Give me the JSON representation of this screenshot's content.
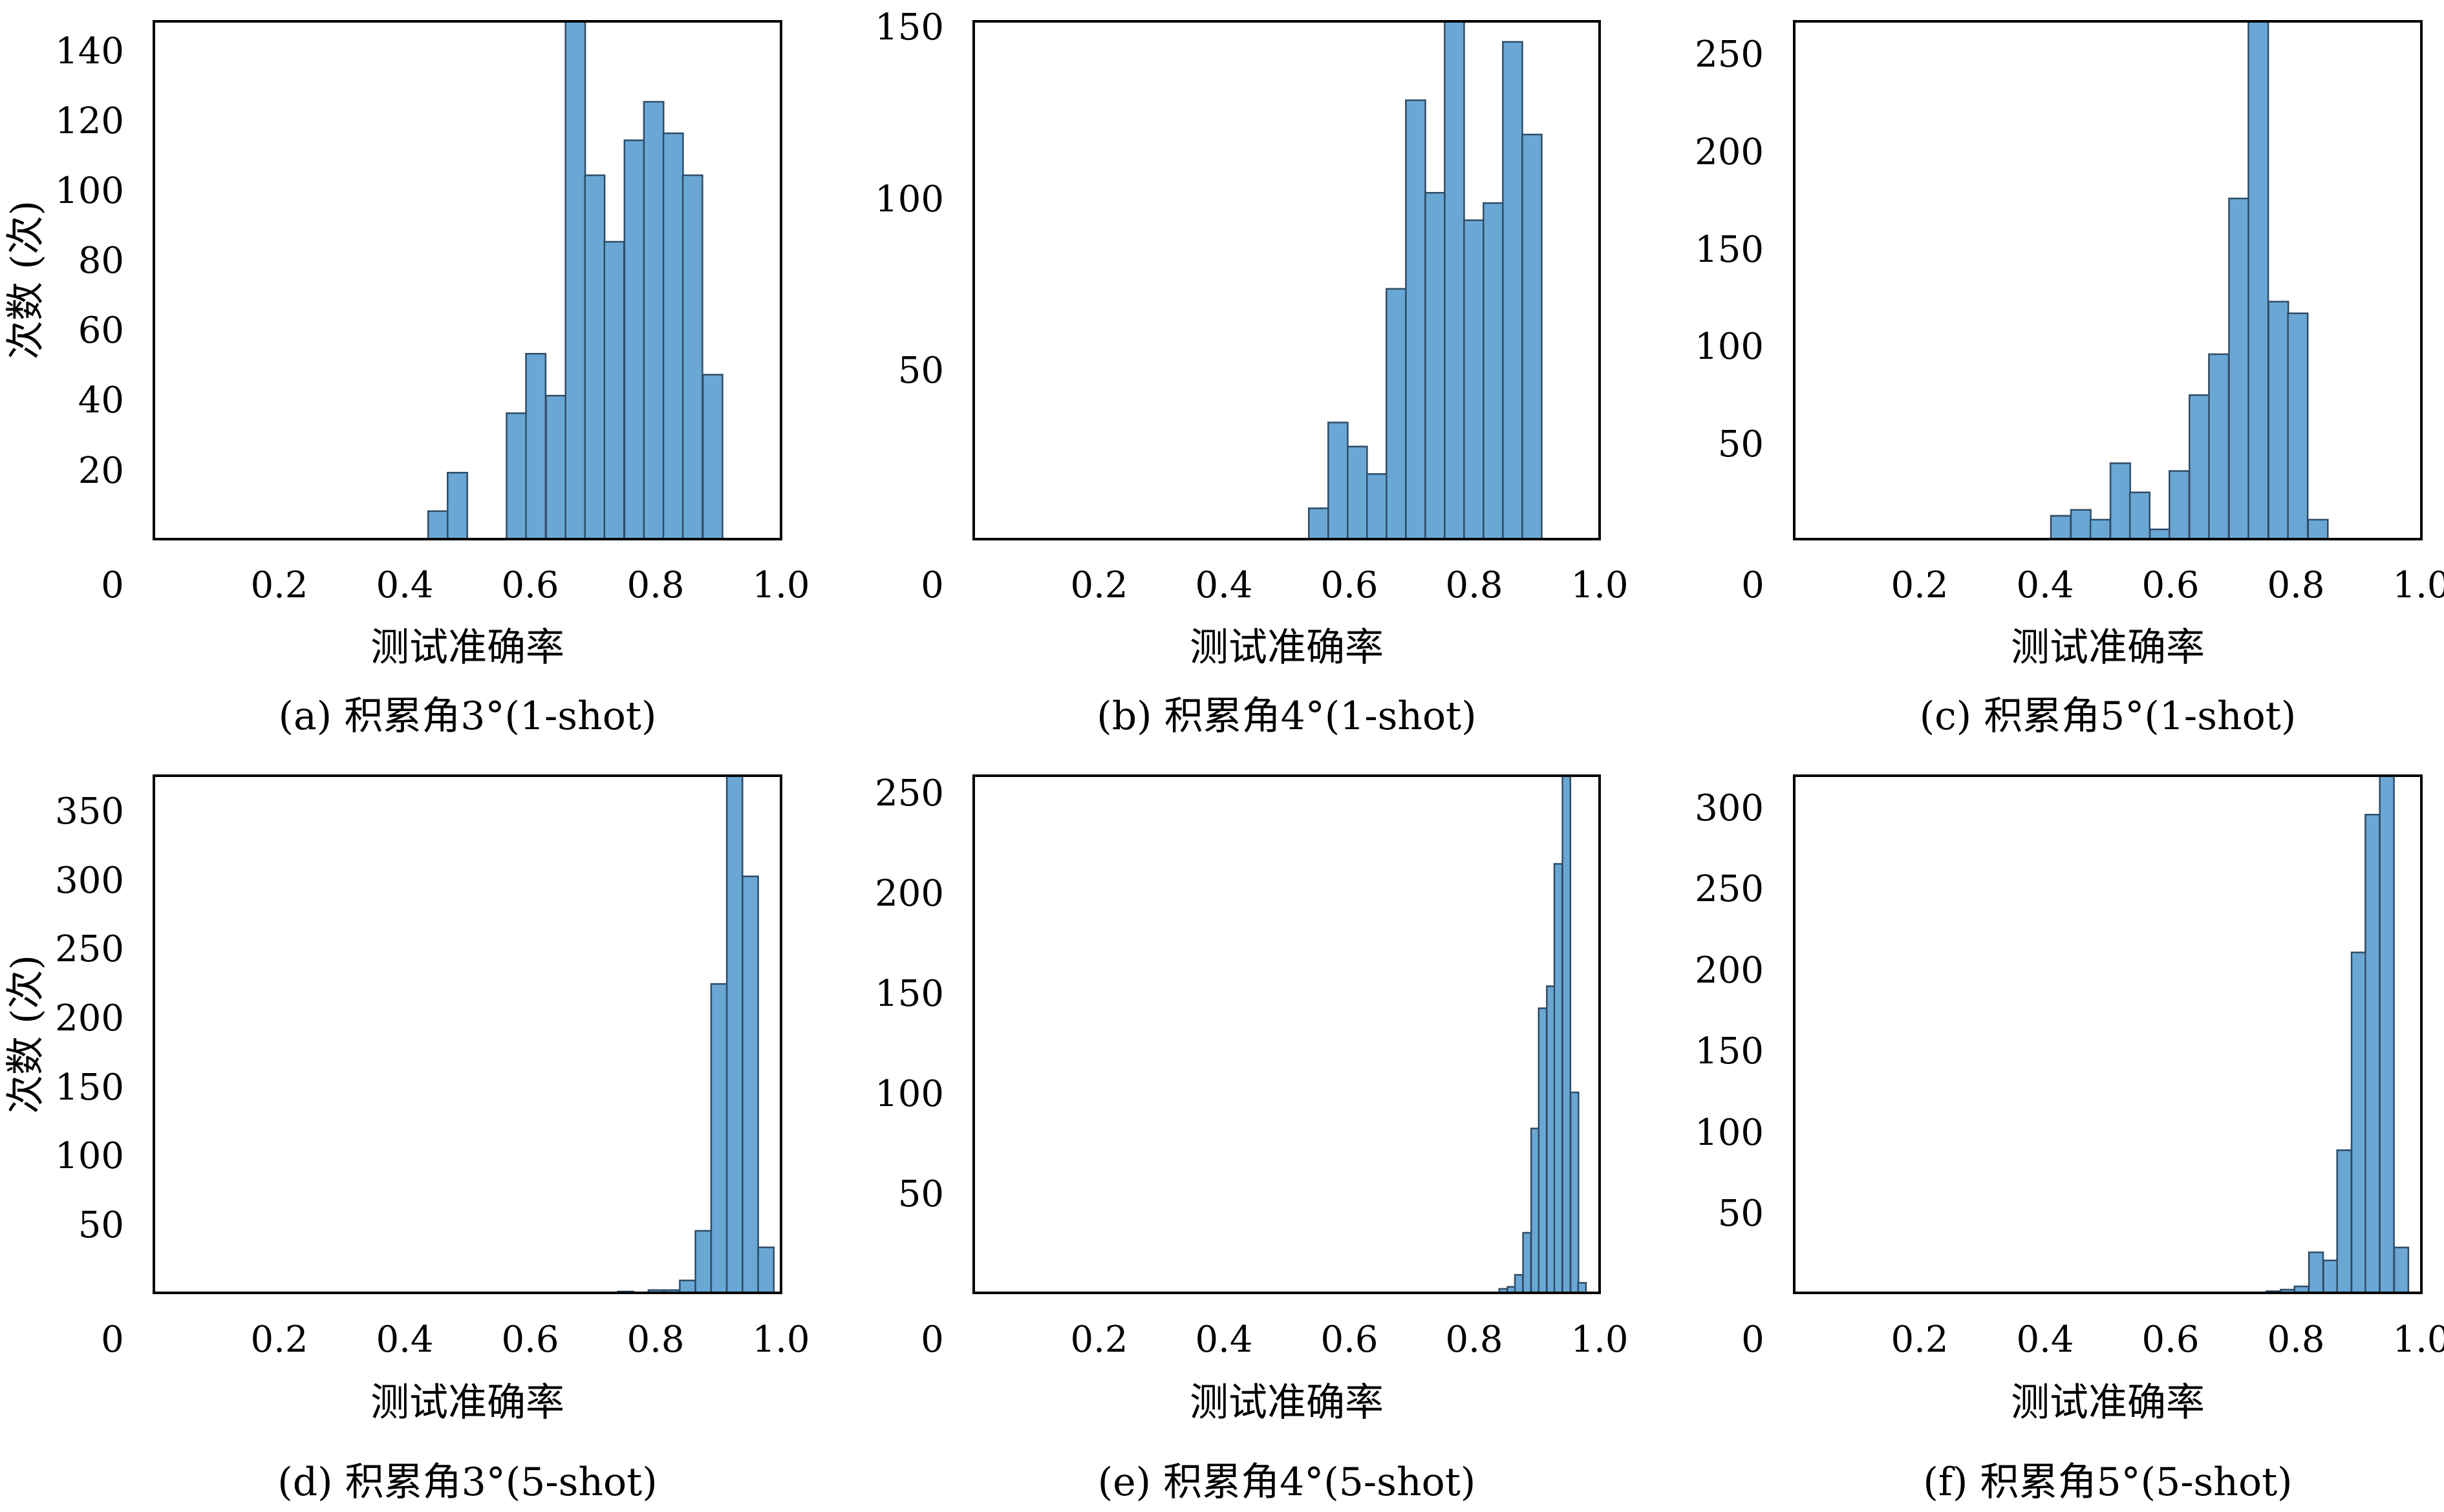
{
  "colors": {
    "bar_fill": "#6aa7d4",
    "bar_stroke": "#2f4c66",
    "frame": "#000000"
  },
  "chart_data": [
    {
      "type": "bar",
      "caption": "(a) 积累角3°(1-shot)",
      "xlabel": "测试准确率",
      "ylabel": "次数 (次)",
      "xlim": [
        0,
        1.0
      ],
      "ylim": [
        0,
        148
      ],
      "xticks": [
        "0",
        "0.2",
        "0.4",
        "0.6",
        "0.8",
        "1.0"
      ],
      "yticks": [
        "20",
        "40",
        "60",
        "80",
        "100",
        "120",
        "140"
      ],
      "bin_width": 0.0313,
      "x": [
        0.453,
        0.484,
        0.578,
        0.609,
        0.641,
        0.672,
        0.703,
        0.734,
        0.766,
        0.797,
        0.828,
        0.859,
        0.891
      ],
      "values": [
        8,
        19,
        36,
        53,
        41,
        150,
        104,
        85,
        114,
        125,
        116,
        104,
        47
      ]
    },
    {
      "type": "bar",
      "caption": "(b) 积累角4°(1-shot)",
      "xlabel": "测试准确率",
      "ylabel": "",
      "xlim": [
        0,
        1.0
      ],
      "ylim": [
        0,
        151
      ],
      "xticks": [
        "0",
        "0.2",
        "0.4",
        "0.6",
        "0.8",
        "1.0"
      ],
      "yticks": [
        "50",
        "100",
        "150"
      ],
      "bin_width": 0.0311,
      "x": [
        0.551,
        0.582,
        0.613,
        0.644,
        0.675,
        0.706,
        0.737,
        0.768,
        0.799,
        0.83,
        0.861,
        0.892
      ],
      "values": [
        9,
        34,
        27,
        19,
        73,
        128,
        101,
        152,
        93,
        98,
        145,
        118
      ]
    },
    {
      "type": "bar",
      "caption": "(c) 积累角5°(1-shot)",
      "xlabel": "测试准确率",
      "ylabel": "",
      "xlim": [
        0,
        1.0
      ],
      "ylim": [
        0,
        266
      ],
      "xticks": [
        "0",
        "0.2",
        "0.4",
        "0.6",
        "0.8",
        "1.0"
      ],
      "yticks": [
        "50",
        "100",
        "150",
        "200",
        "250"
      ],
      "bin_width": 0.0315,
      "x": [
        0.425,
        0.457,
        0.488,
        0.52,
        0.551,
        0.583,
        0.614,
        0.646,
        0.677,
        0.709,
        0.74,
        0.772,
        0.803,
        0.835
      ],
      "values": [
        12,
        15,
        10,
        39,
        24,
        5,
        35,
        74,
        95,
        175,
        270,
        122,
        116,
        10
      ]
    },
    {
      "type": "bar",
      "caption": "(d) 积累角3°(5-shot)",
      "xlabel": "测试准确率",
      "ylabel": "次数 (次)",
      "xlim": [
        0,
        1.0
      ],
      "ylim": [
        0,
        375
      ],
      "xticks": [
        "0",
        "0.2",
        "0.4",
        "0.6",
        "0.8",
        "1.0"
      ],
      "yticks": [
        "50",
        "100",
        "150",
        "200",
        "250",
        "300",
        "350"
      ],
      "bin_width": 0.0249,
      "x": [
        0.752,
        0.776,
        0.801,
        0.826,
        0.851,
        0.876,
        0.901,
        0.926,
        0.951,
        0.976
      ],
      "values": [
        1,
        0,
        2,
        2,
        9,
        45,
        224,
        380,
        302,
        33
      ]
    },
    {
      "type": "bar",
      "caption": "(e) 积累角4°(5-shot)",
      "xlabel": "测试准确率",
      "ylabel": "",
      "xlim": [
        0,
        1.0
      ],
      "ylim": [
        0,
        258
      ],
      "xticks": [
        "0",
        "0.2",
        "0.4",
        "0.6",
        "0.8",
        "1.0"
      ],
      "yticks": [
        "50",
        "100",
        "150",
        "200",
        "250"
      ],
      "bin_width": 0.0126,
      "x": [
        0.846,
        0.859,
        0.871,
        0.884,
        0.897,
        0.909,
        0.922,
        0.934,
        0.947,
        0.96,
        0.972,
        0.985
      ],
      "values": [
        2,
        3,
        9,
        30,
        82,
        142,
        153,
        214,
        260,
        100,
        5,
        0
      ]
    },
    {
      "type": "bar",
      "caption": "(f) 积累角5°(5-shot)",
      "xlabel": "测试准确率",
      "ylabel": "",
      "xlim": [
        0,
        1.0
      ],
      "ylim": [
        0,
        319
      ],
      "xticks": [
        "0",
        "0.2",
        "0.4",
        "0.6",
        "0.8",
        "1.0"
      ],
      "yticks": [
        "50",
        "100",
        "150",
        "200",
        "250",
        "300"
      ],
      "bin_width": 0.0226,
      "x": [
        0.764,
        0.787,
        0.809,
        0.832,
        0.855,
        0.877,
        0.9,
        0.922,
        0.945,
        0.968
      ],
      "values": [
        1,
        2,
        4,
        25,
        20,
        88,
        210,
        295,
        320,
        28
      ]
    }
  ]
}
